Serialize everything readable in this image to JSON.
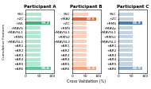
{
  "chart_data": [
    {
      "type": "bar",
      "orientation": "horizontal",
      "title": "Participant A",
      "ylabel": "Cumulative Features",
      "categories": [
        "SSC",
        "+ZC",
        "+WL",
        "+MAVS",
        "+MAVSL1",
        "+RMS",
        "+MAVSL2",
        "+AR1",
        "+AR2",
        "+AR3",
        "+AR4",
        "+AR5",
        "+AR6"
      ],
      "values": [
        60,
        60,
        93.2,
        55,
        55,
        55,
        55,
        55,
        55,
        55,
        55,
        55,
        95.6
      ],
      "value_labels": [
        null,
        null,
        "93.2",
        null,
        null,
        null,
        null,
        null,
        null,
        null,
        null,
        null,
        "95.6"
      ],
      "data_labels": true,
      "colors": [
        "#b2e8d0",
        "#b2e8d0",
        "#3cb57a",
        "#b2e8d0",
        "#b2e8d0",
        "#b2e8d0",
        "#b2e8d0",
        "#b2e8d0",
        "#b2e8d0",
        "#b2e8d0",
        "#b2e8d0",
        "#b2e8d0",
        "#5ec9a0"
      ],
      "xlim": [
        0,
        108
      ],
      "xticks": [
        0,
        50,
        100
      ]
    },
    {
      "type": "bar",
      "orientation": "horizontal",
      "title": "Participant B",
      "xlabel": "Cross Validation (%)",
      "categories": [
        "SSC",
        "+MAV",
        "+ZC",
        "+RMS",
        "+MAVSL1",
        "+RMS2",
        "+MAVSL2",
        "+AR1",
        "+AR2",
        "+AR3",
        "+AR4",
        "+AR5",
        "+AR6"
      ],
      "values": [
        62,
        89.5,
        55,
        55,
        55,
        55,
        55,
        55,
        55,
        55,
        55,
        55,
        91.3
      ],
      "value_labels": [
        null,
        "89.5",
        null,
        null,
        null,
        null,
        null,
        null,
        null,
        null,
        null,
        null,
        "91.3"
      ],
      "data_labels": true,
      "colors": [
        "#fad0bb",
        "#e8623a",
        "#fad0bb",
        "#fad0bb",
        "#fad0bb",
        "#fad0bb",
        "#fad0bb",
        "#fad0bb",
        "#fad0bb",
        "#fad0bb",
        "#fad0bb",
        "#fad0bb",
        "#f4a07a"
      ],
      "xlim": [
        0,
        108
      ],
      "xticks": [
        0,
        50,
        100
      ]
    },
    {
      "type": "bar",
      "orientation": "horizontal",
      "title": "Participant C",
      "categories": [
        "SSC",
        "+ZC",
        "+RMS",
        "+MAVp",
        "+MAVSL1",
        "+RMS2",
        "+MAVSL2",
        "+AR1",
        "+AR2",
        "+AR3",
        "+AR4",
        "+AR5",
        "+AR6"
      ],
      "values": [
        55,
        55,
        88.9,
        52,
        52,
        52,
        52,
        52,
        52,
        52,
        52,
        52,
        89.9
      ],
      "value_labels": [
        null,
        null,
        "88.9",
        null,
        null,
        null,
        null,
        null,
        null,
        null,
        null,
        null,
        "89.9"
      ],
      "data_labels": true,
      "colors": [
        "#c2d4e4",
        "#c2d4e4",
        "#4a7fb5",
        "#c2d4e4",
        "#c2d4e4",
        "#c2d4e4",
        "#c2d4e4",
        "#c2d4e4",
        "#c2d4e4",
        "#c2d4e4",
        "#c2d4e4",
        "#c2d4e4",
        "#8faec8"
      ],
      "xlim": [
        0,
        108
      ],
      "xticks": [
        0,
        50,
        100
      ]
    }
  ]
}
